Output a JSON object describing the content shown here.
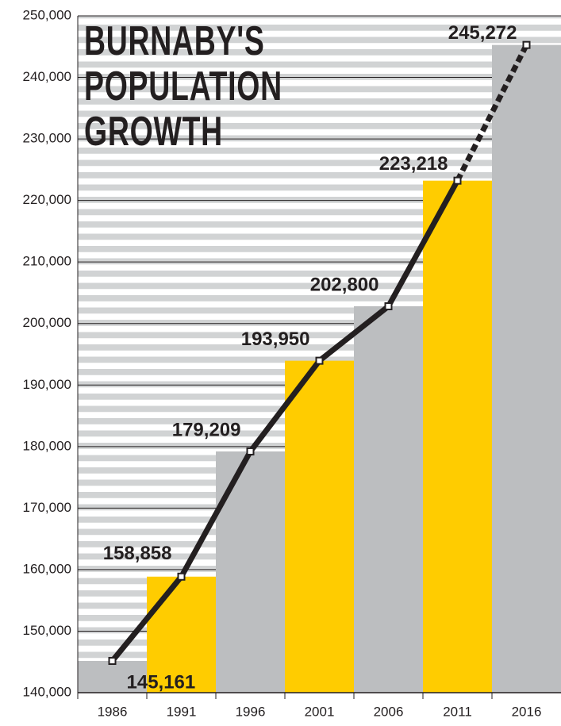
{
  "chart_data": {
    "type": "bar",
    "title": "BURNABY'S POPULATION GROWTH",
    "categories": [
      "1986",
      "1991",
      "1996",
      "2001",
      "2006",
      "2011",
      "2016"
    ],
    "values": [
      145161,
      158858,
      179209,
      193950,
      202800,
      223218,
      245272
    ],
    "value_labels": [
      "145,161",
      "158,858",
      "179,209",
      "193,950",
      "202,800",
      "223,218",
      "245,272"
    ],
    "colors": [
      "#bcbec0",
      "#ffcc00",
      "#bcbec0",
      "#ffcc00",
      "#bcbec0",
      "#ffcc00",
      "#bcbec0"
    ],
    "line_color": "#231f20",
    "ylim": [
      140000,
      250000
    ],
    "yticks": [
      {
        "value": 140000,
        "label": "140,000"
      },
      {
        "value": 150000,
        "label": "150,000"
      },
      {
        "value": 160000,
        "label": "160,000"
      },
      {
        "value": 170000,
        "label": "170,000"
      },
      {
        "value": 180000,
        "label": "180,000"
      },
      {
        "value": 190000,
        "label": "190,000"
      },
      {
        "value": 200000,
        "label": "200,000"
      },
      {
        "value": 210000,
        "label": "210,000"
      },
      {
        "value": 220000,
        "label": "220,000"
      },
      {
        "value": 230000,
        "label": "230,000"
      },
      {
        "value": 240000,
        "label": "240,000"
      },
      {
        "value": 250000,
        "label": "250,000"
      }
    ],
    "grid": true
  }
}
